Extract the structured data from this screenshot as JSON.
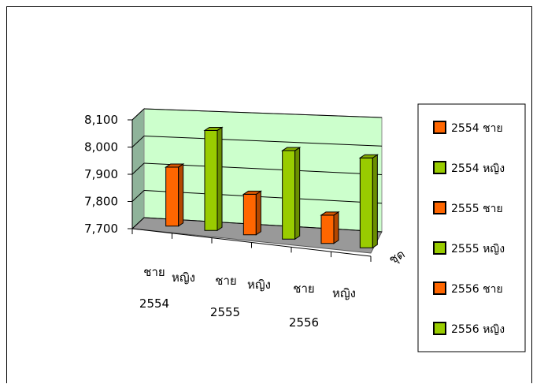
{
  "chart_data": {
    "type": "bar",
    "title": "",
    "ylabel": "",
    "xlabel": "ชุด",
    "ylim": [
      7700,
      8100
    ],
    "yticks": [
      "7,700",
      "7,800",
      "7,900",
      "8,000",
      "8,100"
    ],
    "categories": [
      {
        "sex": "ชาย",
        "year": "2554"
      },
      {
        "sex": "หญิง",
        "year": ""
      },
      {
        "sex": "ชาย",
        "year": "2555"
      },
      {
        "sex": "หญิง",
        "year": ""
      },
      {
        "sex": "ชาย",
        "year": "2556"
      },
      {
        "sex": "หญิง",
        "year": ""
      }
    ],
    "series": [
      {
        "name": "2554 ชาย",
        "value": 7930,
        "color": "#ff6600"
      },
      {
        "name": "2554 หญิง",
        "value": 8080,
        "color": "#99cc00"
      },
      {
        "name": "2555 ชาย",
        "value": 7850,
        "color": "#ff6600"
      },
      {
        "name": "2555 หญิง",
        "value": 8020,
        "color": "#99cc00"
      },
      {
        "name": "2556 ชาย",
        "value": 7800,
        "color": "#ff6600"
      },
      {
        "name": "2556 หญิง",
        "value": 8010,
        "color": "#99cc00"
      }
    ],
    "legend_position": "right",
    "wall_color": "#ccffcc",
    "floor_color": "#999999",
    "gridlines": true
  }
}
